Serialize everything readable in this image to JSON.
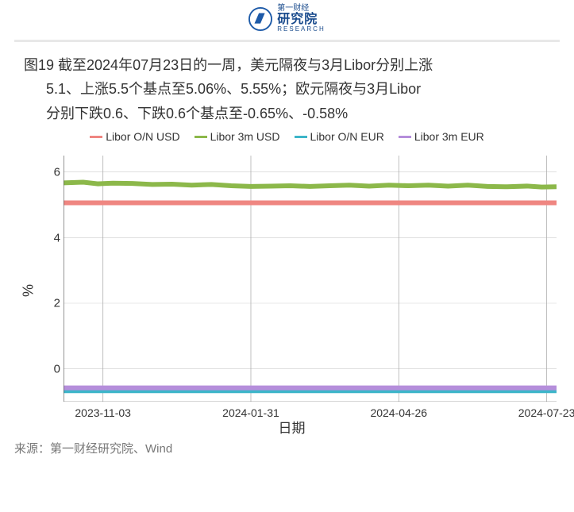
{
  "header": {
    "logo_small": "第一财经",
    "logo_cn": "研究院",
    "logo_en": "RESEARCH",
    "logo_color": "#1d5aa8"
  },
  "title": {
    "line1": "图19 截至2024年07月23日的一周，美元隔夜与3月Libor分别上涨",
    "line2": "5.1、上涨5.5个基点至5.06%、5.55%；欧元隔夜与3月Libor",
    "line3": "分别下跌0.6、下跌0.6个基点至-0.65%、-0.58%",
    "fontsize": 18,
    "color": "#333333"
  },
  "chart": {
    "type": "line",
    "background_color": "#ffffff",
    "grid_color": "#aaaaaa",
    "border_color": "#555555",
    "ylabel": "%",
    "xlabel": "日期",
    "ylim": [
      -1,
      6.5
    ],
    "yticks": [
      0,
      2,
      4,
      6
    ],
    "xticks": [
      "2023-11-03",
      "2024-01-31",
      "2024-04-26",
      "2024-07-23"
    ],
    "xtick_pos": [
      0.08,
      0.38,
      0.68,
      0.98
    ],
    "legend": [
      {
        "label": "Libor O/N USD",
        "color": "#ef8681"
      },
      {
        "label": "Libor 3m USD",
        "color": "#8cb84a"
      },
      {
        "label": "Libor O/N EUR",
        "color": "#3db5c9"
      },
      {
        "label": "Libor 3m EUR",
        "color": "#b58edb"
      }
    ],
    "series": [
      {
        "name": "Libor O/N USD",
        "color": "#ef8681",
        "width": 2,
        "points": [
          [
            0.0,
            5.06
          ],
          [
            0.1,
            5.06
          ],
          [
            0.2,
            5.06
          ],
          [
            0.3,
            5.06
          ],
          [
            0.4,
            5.06
          ],
          [
            0.5,
            5.06
          ],
          [
            0.6,
            5.06
          ],
          [
            0.7,
            5.06
          ],
          [
            0.8,
            5.06
          ],
          [
            0.9,
            5.06
          ],
          [
            1.0,
            5.06
          ]
        ]
      },
      {
        "name": "Libor 3m USD",
        "color": "#8cb84a",
        "width": 2,
        "points": [
          [
            0.0,
            5.67
          ],
          [
            0.04,
            5.69
          ],
          [
            0.07,
            5.64
          ],
          [
            0.1,
            5.66
          ],
          [
            0.14,
            5.65
          ],
          [
            0.18,
            5.62
          ],
          [
            0.22,
            5.63
          ],
          [
            0.26,
            5.6
          ],
          [
            0.3,
            5.62
          ],
          [
            0.34,
            5.58
          ],
          [
            0.38,
            5.56
          ],
          [
            0.42,
            5.57
          ],
          [
            0.46,
            5.58
          ],
          [
            0.5,
            5.56
          ],
          [
            0.54,
            5.58
          ],
          [
            0.58,
            5.6
          ],
          [
            0.62,
            5.57
          ],
          [
            0.66,
            5.6
          ],
          [
            0.7,
            5.58
          ],
          [
            0.74,
            5.6
          ],
          [
            0.78,
            5.57
          ],
          [
            0.82,
            5.6
          ],
          [
            0.86,
            5.56
          ],
          [
            0.9,
            5.55
          ],
          [
            0.94,
            5.57
          ],
          [
            0.97,
            5.54
          ],
          [
            1.0,
            5.55
          ]
        ]
      },
      {
        "name": "Libor O/N EUR",
        "color": "#3db5c9",
        "width": 2.5,
        "points": [
          [
            0.0,
            -0.65
          ],
          [
            0.1,
            -0.65
          ],
          [
            0.2,
            -0.65
          ],
          [
            0.3,
            -0.65
          ],
          [
            0.4,
            -0.65
          ],
          [
            0.5,
            -0.65
          ],
          [
            0.6,
            -0.65
          ],
          [
            0.7,
            -0.65
          ],
          [
            0.8,
            -0.65
          ],
          [
            0.9,
            -0.65
          ],
          [
            1.0,
            -0.65
          ]
        ]
      },
      {
        "name": "Libor 3m EUR",
        "color": "#b58edb",
        "width": 2,
        "points": [
          [
            0.0,
            -0.58
          ],
          [
            0.1,
            -0.58
          ],
          [
            0.2,
            -0.58
          ],
          [
            0.3,
            -0.58
          ],
          [
            0.4,
            -0.58
          ],
          [
            0.5,
            -0.58
          ],
          [
            0.6,
            -0.58
          ],
          [
            0.7,
            -0.58
          ],
          [
            0.8,
            -0.58
          ],
          [
            0.9,
            -0.58
          ],
          [
            1.0,
            -0.58
          ]
        ]
      }
    ]
  },
  "source": "来源：第一财经研究院、Wind"
}
